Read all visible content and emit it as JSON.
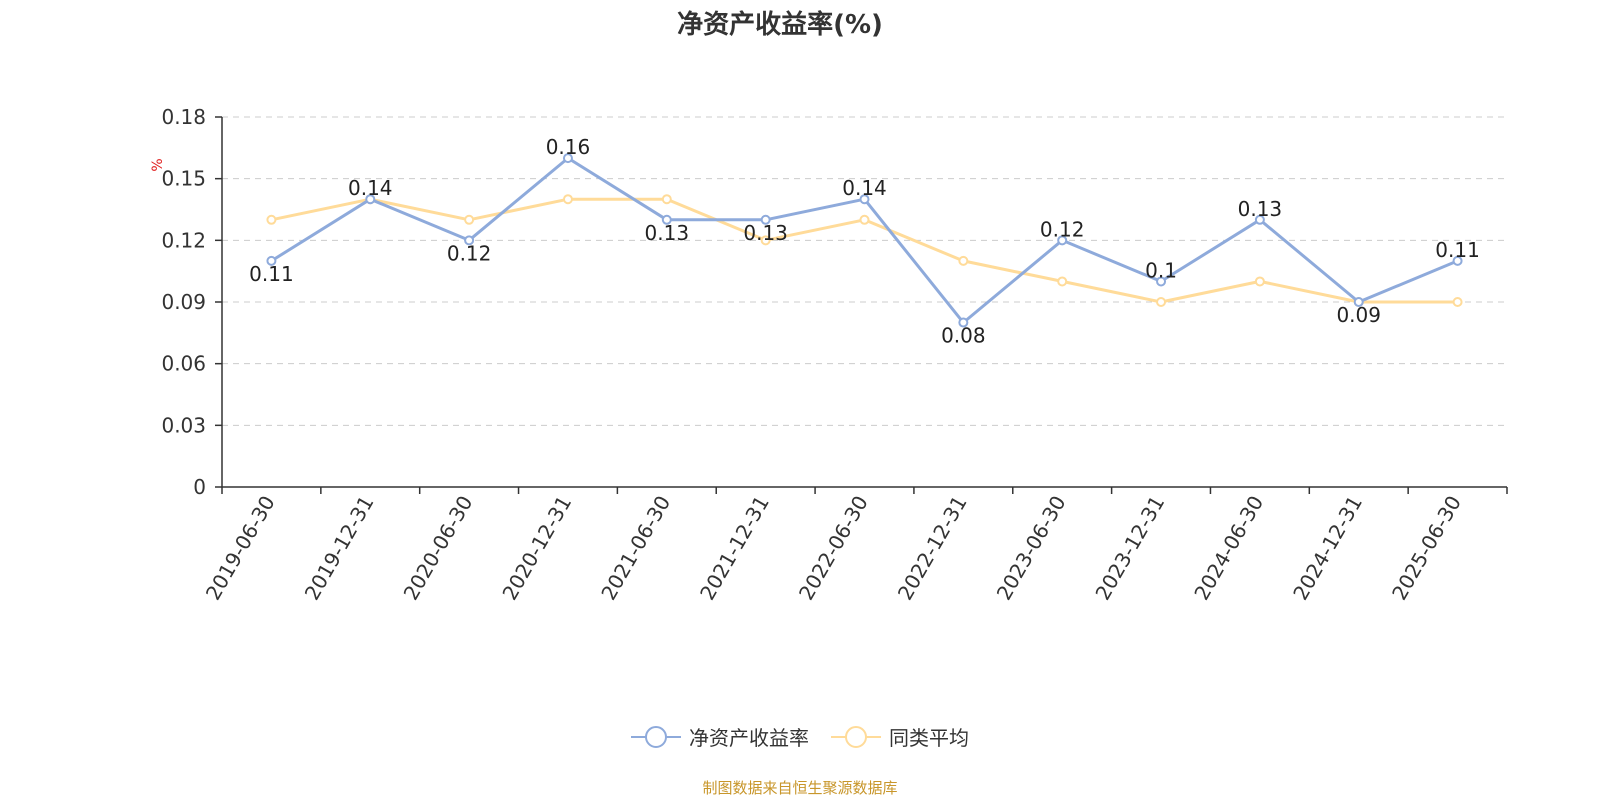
{
  "chart_data": {
    "type": "line",
    "title": "净资产收益率(%)",
    "ylabel": "%",
    "categories": [
      "2019-06-30",
      "2019-12-31",
      "2020-06-30",
      "2020-12-31",
      "2021-06-30",
      "2021-12-31",
      "2022-06-30",
      "2022-12-31",
      "2023-06-30",
      "2023-12-31",
      "2024-06-30",
      "2024-12-31",
      "2025-06-30"
    ],
    "yticks": [
      "0",
      "0.03",
      "0.06",
      "0.09",
      "0.12",
      "0.15",
      "0.18"
    ],
    "ylim": [
      0,
      0.18
    ],
    "grid": true,
    "legend_position": "bottom-center",
    "series": [
      {
        "name": "净资产收益率",
        "color": "#8eaadb",
        "values": [
          0.11,
          0.14,
          0.12,
          0.16,
          0.13,
          0.13,
          0.14,
          0.08,
          0.12,
          0.1,
          0.13,
          0.09,
          0.11
        ],
        "data_labels": [
          "0.11",
          "0.14",
          "0.12",
          "0.16",
          "0.13",
          "0.13",
          "0.14",
          "0.08",
          "0.12",
          "0.1",
          "0.13",
          "0.09",
          "0.11"
        ]
      },
      {
        "name": "同类平均",
        "color": "#ffdb99",
        "values": [
          0.13,
          0.14,
          0.13,
          0.14,
          0.14,
          0.12,
          0.13,
          0.11,
          0.1,
          0.09,
          0.1,
          0.09,
          0.09
        ]
      }
    ]
  },
  "footer": {
    "source_text": "制图数据来自恒生聚源数据库",
    "color": "#c8962a"
  },
  "unit_color": "#e02020"
}
